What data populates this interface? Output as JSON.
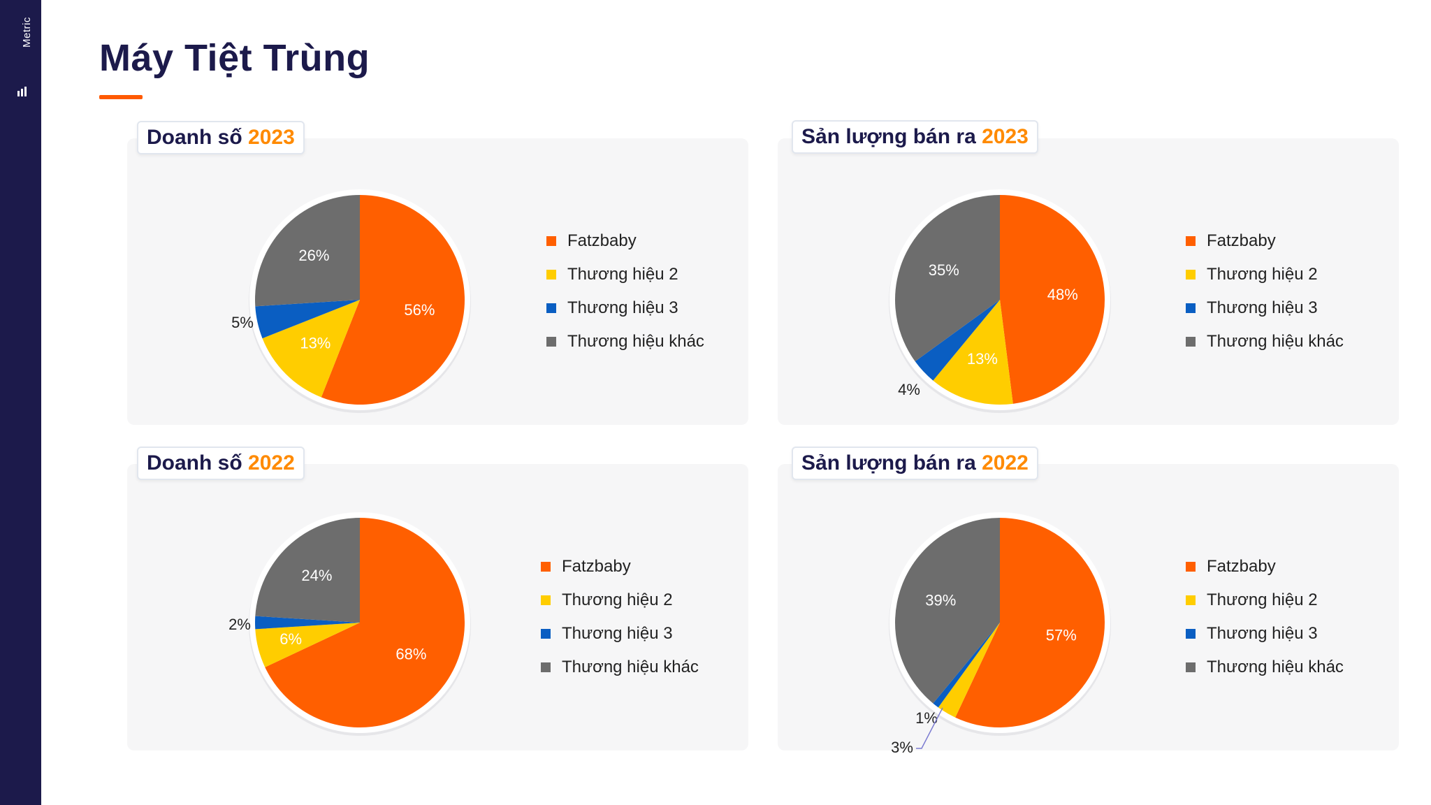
{
  "brand": {
    "name": "Metric"
  },
  "page": {
    "title": "Máy Tiệt Trùng"
  },
  "colors": {
    "accent": "#ff5a00",
    "navy": "#1c1a4b",
    "year": "#ff8a00"
  },
  "chart_data": [
    {
      "type": "pie",
      "title_prefix": "Doanh số",
      "title_year": "2023",
      "labels": [
        "Fatzbaby",
        "Thương hiệu 2",
        "Thương hiệu 3",
        "Thương hiệu khác"
      ],
      "colors": [
        "#ff5f00",
        "#ffcd00",
        "#0a5ec2",
        "#6d6d6d"
      ],
      "values": [
        56,
        13,
        5,
        26
      ],
      "value_labels": [
        "56%",
        "13%",
        "5%",
        "26%"
      ]
    },
    {
      "type": "pie",
      "title_prefix": "Sản lượng bán ra",
      "title_year": "2023",
      "labels": [
        "Fatzbaby",
        "Thương hiệu 2",
        "Thương hiệu 3",
        "Thương hiệu khác"
      ],
      "colors": [
        "#ff5f00",
        "#ffcd00",
        "#0a5ec2",
        "#6d6d6d"
      ],
      "values": [
        48,
        13,
        4,
        35
      ],
      "value_labels": [
        "48%",
        "13%",
        "4%",
        "35%"
      ]
    },
    {
      "type": "pie",
      "title_prefix": "Doanh số",
      "title_year": "2022",
      "labels": [
        "Fatzbaby",
        "Thương hiệu 2",
        "Thương hiệu 3",
        "Thương hiệu khác"
      ],
      "colors": [
        "#ff5f00",
        "#ffcd00",
        "#0a5ec2",
        "#6d6d6d"
      ],
      "values": [
        68,
        6,
        2,
        24
      ],
      "value_labels": [
        "68%",
        "6%",
        "2%",
        "24%"
      ]
    },
    {
      "type": "pie",
      "title_prefix": "Sản lượng bán ra",
      "title_year": "2022",
      "labels": [
        "Fatzbaby",
        "Thương hiệu 2",
        "Thương hiệu 3",
        "Thương hiệu khác"
      ],
      "colors": [
        "#ff5f00",
        "#ffcd00",
        "#0a5ec2",
        "#6d6d6d"
      ],
      "values": [
        57,
        3,
        1,
        39
      ],
      "value_labels": [
        "57%",
        "3%",
        "1%",
        "39%"
      ]
    }
  ]
}
